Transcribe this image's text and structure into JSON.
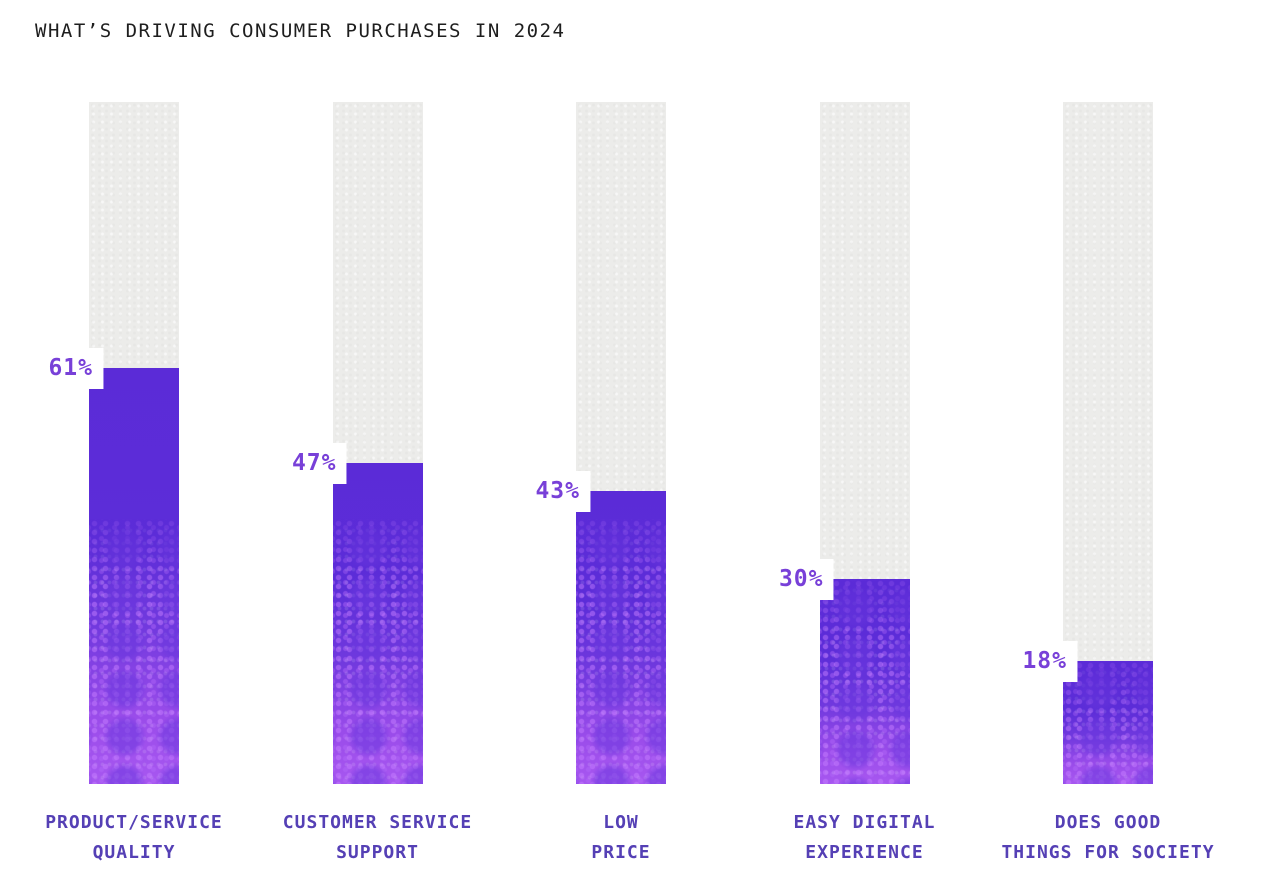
{
  "chart_data": {
    "type": "bar",
    "title": "WHAT’S DRIVING CONSUMER PURCHASES IN 2024",
    "categories": [
      "PRODUCT/SERVICE QUALITY",
      "CUSTOMER SERVICE SUPPORT",
      "LOW PRICE",
      "EASY DIGITAL EXPERIENCE",
      "DOES GOOD THINGS FOR SOCIETY"
    ],
    "category_lines": [
      [
        "PRODUCT/SERVICE",
        "QUALITY"
      ],
      [
        "CUSTOMER SERVICE",
        "SUPPORT"
      ],
      [
        "LOW",
        "PRICE"
      ],
      [
        "EASY DIGITAL",
        "EXPERIENCE"
      ],
      [
        "DOES GOOD",
        "THINGS FOR SOCIETY"
      ]
    ],
    "values": [
      61,
      47,
      43,
      30,
      18
    ],
    "value_labels": [
      "61%",
      "47%",
      "43%",
      "30%",
      "18%"
    ],
    "ylim": [
      0,
      100
    ],
    "orientation": "vertical",
    "grid": false,
    "legend": "none",
    "colors": {
      "background": "#FFFFFF",
      "track": "#ECECEA",
      "fill_top": "#5B2BD7",
      "fill_bottom": "#A757F0",
      "value_label_text": "#7840D8",
      "value_label_bg": "#FFFFFF",
      "category_text": "#5540B5",
      "title_text": "#1E1E1E"
    }
  }
}
